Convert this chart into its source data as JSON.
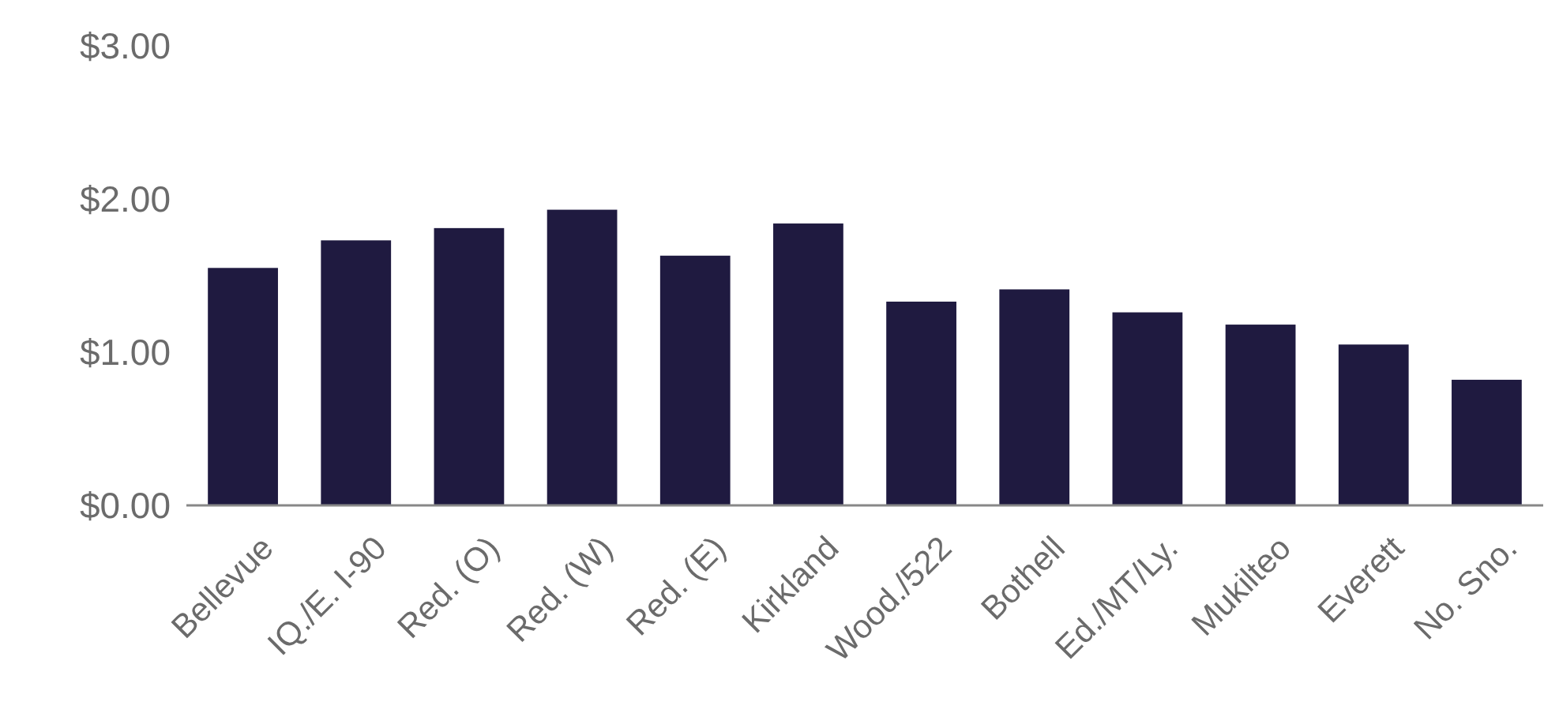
{
  "chart_data": {
    "type": "bar",
    "categories": [
      "Bellevue",
      "IQ./E. I-90",
      "Red. (O)",
      "Red. (W)",
      "Red. (E)",
      "Kirkland",
      "Wood./522",
      "Bothell",
      "Ed./MT/Ly.",
      "Mukilteo",
      "Everett",
      "No. Sno."
    ],
    "values": [
      1.55,
      1.73,
      1.81,
      1.93,
      1.63,
      1.84,
      1.33,
      1.41,
      1.26,
      1.18,
      1.05,
      0.82
    ],
    "color": "#1f1a40",
    "ylim": [
      0,
      3
    ],
    "yticks": [
      {
        "value": 0,
        "label": "$0.00"
      },
      {
        "value": 1,
        "label": "$1.00"
      },
      {
        "value": 2,
        "label": "$2.00"
      },
      {
        "value": 3,
        "label": "$3.00"
      }
    ],
    "grid": false
  }
}
